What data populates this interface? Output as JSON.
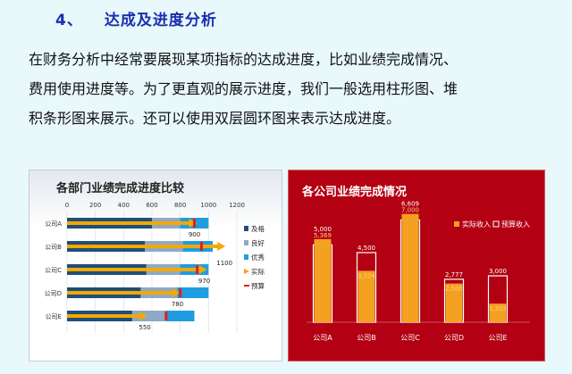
{
  "heading": {
    "number": "4、",
    "title": "达成及进度分析"
  },
  "paragraph": [
    "在财务分析中经常要展现某项指标的达成进度，比如业绩完成情况、",
    "费用使用进度等。为了更直观的展示进度，我们一般选用柱形图、堆",
    "积条形图来展示。还可以使用双层圆环图来表示达成进度。"
  ],
  "chart_data": [
    {
      "type": "bar",
      "orientation": "horizontal",
      "title": "各部门业绩完成进度比较",
      "categories": [
        "公司A",
        "公司B",
        "公司C",
        "公司D",
        "公司E"
      ],
      "xlim": [
        0,
        1200
      ],
      "xticks": [
        0,
        200,
        400,
        600,
        800,
        1000,
        1200
      ],
      "bands": [
        {
          "name": "及格",
          "color": "#1f4e79",
          "values": [
            600,
            550,
            560,
            520,
            460
          ]
        },
        {
          "name": "良好",
          "color": "#8ea9c6",
          "values": [
            800,
            820,
            800,
            780,
            700
          ]
        },
        {
          "name": "优秀",
          "color": "#1f9de0",
          "values": [
            1000,
            1030,
            1000,
            1000,
            900
          ]
        }
      ],
      "series": [
        {
          "name": "实际",
          "color": "#f5a800",
          "values": [
            900,
            1100,
            970,
            780,
            550
          ],
          "labels": [
            "900",
            "1100",
            "970",
            "780",
            "550"
          ]
        },
        {
          "name": "预算",
          "color": "#e0201c",
          "values": [
            900,
            950,
            920,
            800,
            700
          ]
        }
      ],
      "legend": [
        "及格",
        "良好",
        "优秀",
        "实际",
        "预算"
      ],
      "legend_position": "right"
    },
    {
      "type": "bar",
      "title": "各公司业绩完成情况",
      "categories": [
        "公司A",
        "公司B",
        "公司C",
        "公司D",
        "公司E"
      ],
      "series": [
        {
          "name": "实际收入",
          "color": "#f4a020",
          "values": [
            5369,
            3324,
            7000,
            2500,
            1203
          ],
          "labels": [
            "5,369",
            "3,324",
            "7,000",
            "2,500",
            "1,203"
          ]
        },
        {
          "name": "预算收入",
          "color": "#b30012",
          "values": [
            5000,
            4500,
            6609,
            2777,
            3000
          ],
          "labels": [
            "5,000",
            "4,500",
            "6,609",
            "2,777",
            "3,000"
          ]
        }
      ],
      "ylim": [
        0,
        7500
      ],
      "legend_position": "top-right"
    }
  ]
}
